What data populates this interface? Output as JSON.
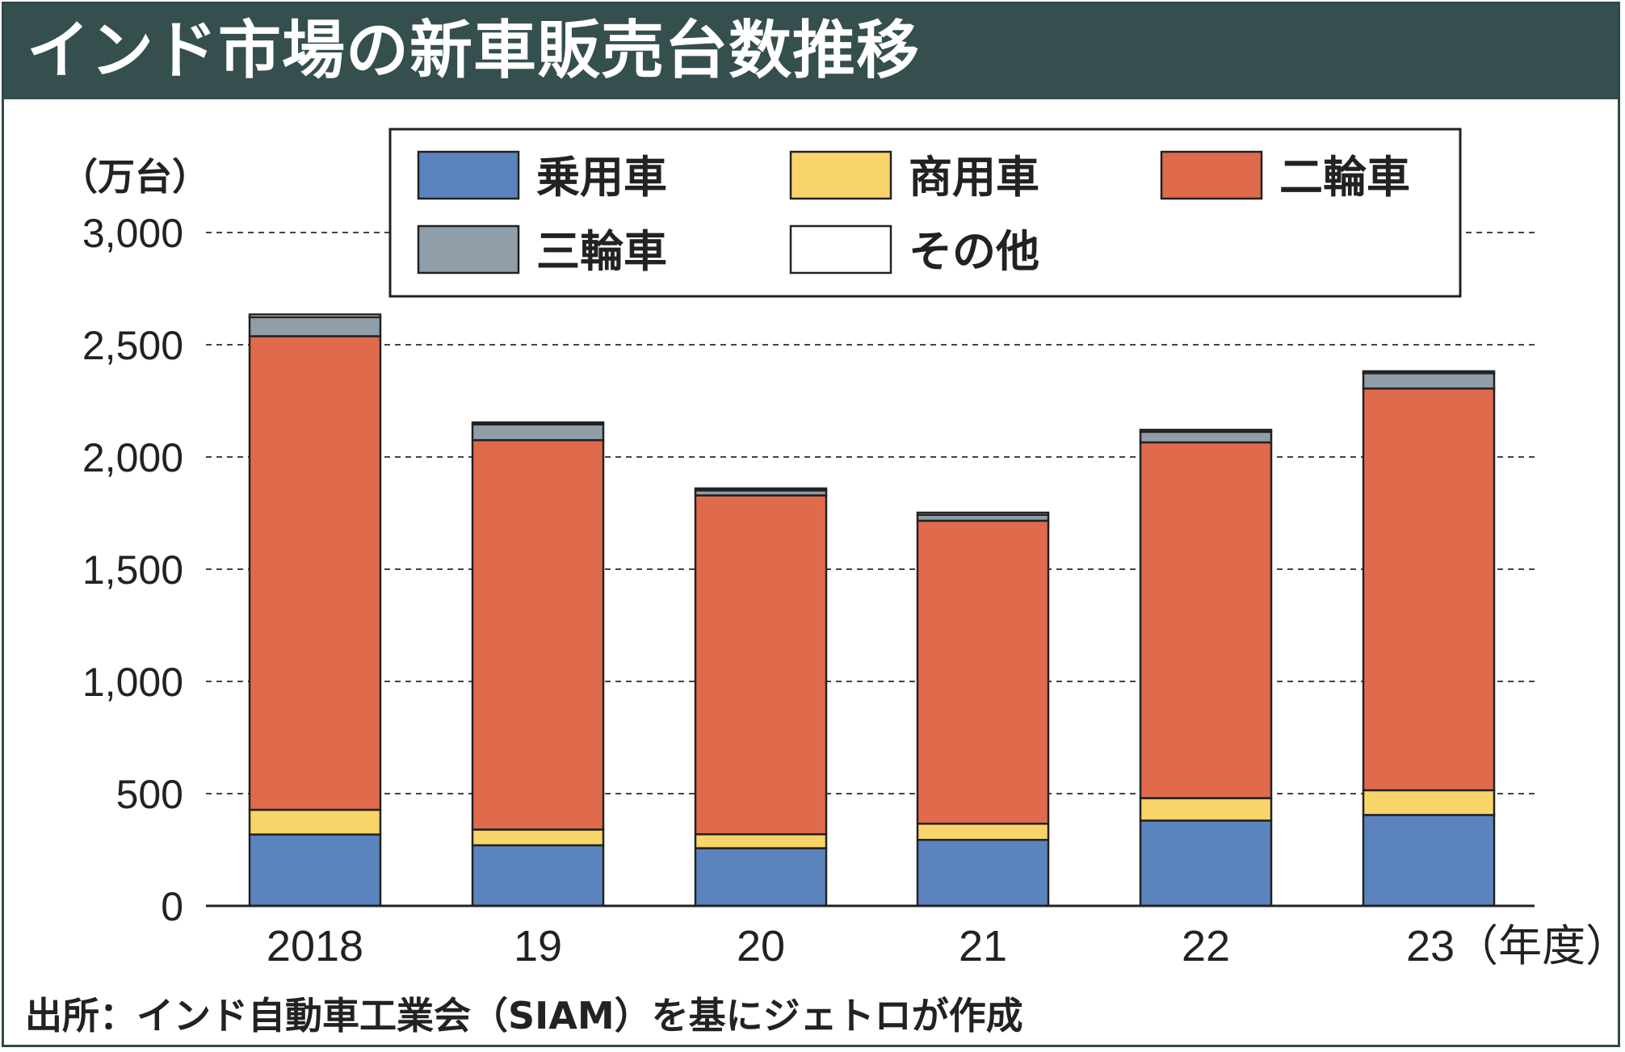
{
  "title": "インド市場の新車販売台数推移",
  "source": "出所：インド自動車工業会（SIAM）を基にジェトロが作成",
  "chart_data": {
    "type": "bar",
    "stacked": true,
    "title": "インド市場の新車販売台数推移",
    "ylabel": "（万台）",
    "xlabel": "（年度）",
    "ylim": [
      0,
      3000
    ],
    "yticks": [
      0,
      500,
      1000,
      1500,
      2000,
      2500,
      3000
    ],
    "ytick_labels": [
      "0",
      "500",
      "1,000",
      "1,500",
      "2,000",
      "2,500",
      "3,000"
    ],
    "categories": [
      "2018",
      "19",
      "20",
      "21",
      "22",
      "23"
    ],
    "category_labels": [
      "2018",
      "19",
      "20",
      "21",
      "22",
      "23（年度）"
    ],
    "grid": "horizontal-dashed",
    "legend_position": "top-center",
    "series": [
      {
        "name": "乗用車",
        "color": "#5b84bf",
        "values": [
          318,
          270,
          257,
          294,
          380,
          405
        ]
      },
      {
        "name": "商用車",
        "color": "#f8d469",
        "values": [
          110,
          70,
          62,
          72,
          100,
          110
        ]
      },
      {
        "name": "二輪車",
        "color": "#e06a4c",
        "values": [
          2110,
          1735,
          1510,
          1350,
          1585,
          1790
        ]
      },
      {
        "name": "三輪車",
        "color": "#8f9ea8",
        "values": [
          85,
          70,
          22,
          26,
          47,
          68
        ]
      },
      {
        "name": "その他",
        "color": "#ffffff",
        "values": [
          12,
          9,
          9,
          10,
          9,
          9
        ]
      }
    ]
  }
}
